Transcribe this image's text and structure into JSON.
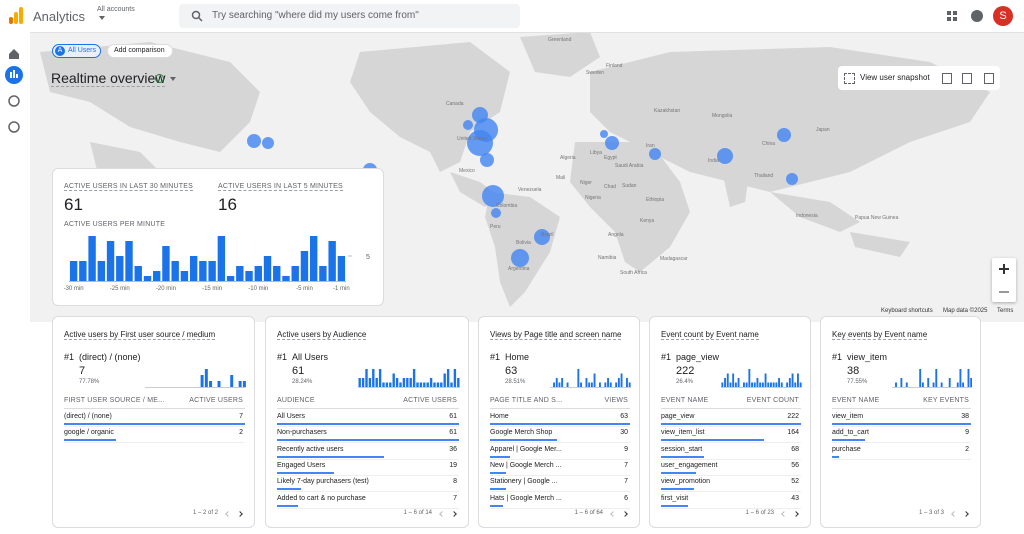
{
  "header": {
    "app_name": "Analytics",
    "account": "All accounts",
    "search_placeholder": "Try searching \"where did my users come from\"",
    "avatar": "S"
  },
  "toolbar": {
    "segment_badge": "A",
    "segment": "All Users",
    "add_comparison": "Add comparison",
    "title": "Realtime overview",
    "snapshot": "View user snapshot"
  },
  "map": {
    "labels": [
      "Greenland",
      "Canada",
      "United States",
      "Mexico",
      "Venezuela",
      "Colombia",
      "Peru",
      "Brazil",
      "Bolivia",
      "Argentina",
      "Sweden",
      "Finland",
      "Kazakhstan",
      "Mongolia",
      "China",
      "India",
      "Iran",
      "Saudi Arabia",
      "Egypt",
      "Libya",
      "Algeria",
      "Mali",
      "Niger",
      "Chad",
      "Sudan",
      "Nigeria",
      "Ethiopia",
      "Kenya",
      "Angola",
      "Namibia",
      "South Africa",
      "Madagascar",
      "Thailand",
      "Indonesia",
      "Papua New Guinea",
      "Japan"
    ],
    "footer": [
      "Keyboard shortcuts",
      "Map data ©2025",
      "Terms"
    ]
  },
  "overview": {
    "last30_label": "ACTIVE USERS IN LAST 30 MINUTES",
    "last30_value": 61,
    "last5_label": "ACTIVE USERS IN LAST 5 MINUTES",
    "last5_value": 16
  },
  "chart_data": {
    "type": "bar",
    "title": "ACTIVE USERS PER MINUTE",
    "color": "#1a73e8",
    "categories": [
      "-30 min",
      null,
      null,
      null,
      null,
      "-25 min",
      null,
      null,
      null,
      null,
      "-20 min",
      null,
      null,
      null,
      null,
      "-15 min",
      null,
      null,
      null,
      null,
      "-10 min",
      null,
      null,
      null,
      null,
      "-5 min",
      null,
      null,
      null,
      "-1 min"
    ],
    "values": [
      4,
      4,
      9,
      4,
      8,
      5,
      8,
      3,
      1,
      2,
      7,
      4,
      2,
      5,
      4,
      4,
      9,
      1,
      3,
      2,
      3,
      5,
      3,
      1,
      3,
      6,
      9,
      3,
      8,
      5
    ],
    "ylim": [
      0,
      10
    ],
    "yticks": [
      5
    ]
  },
  "cards": [
    {
      "title": "Active users by First user source / medium",
      "top_rank": "#1",
      "top_name": "(direct) / (none)",
      "top_value": 7,
      "top_percent": "77.78%",
      "sparkline": [
        0,
        0,
        0,
        0,
        0,
        0,
        0,
        0,
        0,
        0,
        0,
        0,
        0,
        2,
        3,
        1,
        0,
        1,
        0,
        0,
        2,
        0,
        1,
        1
      ],
      "columns": [
        "FIRST USER SOURCE / ME...",
        "ACTIVE USERS"
      ],
      "rows": [
        {
          "label": "(direct) / (none)",
          "value": 7
        },
        {
          "label": "google / organic",
          "value": 2
        }
      ],
      "pagination": "1 – 2 of 2"
    },
    {
      "title": "Active users by Audience",
      "top_rank": "#1",
      "top_name": "All Users",
      "top_value": 61,
      "top_percent": "28.24%",
      "sparkline": [
        2,
        2,
        4,
        2,
        4,
        2,
        4,
        1,
        1,
        1,
        3,
        2,
        1,
        2,
        2,
        2,
        4,
        1,
        1,
        1,
        1,
        2,
        1,
        1,
        1,
        3,
        4,
        1,
        4,
        2
      ],
      "columns": [
        "AUDIENCE",
        "ACTIVE USERS"
      ],
      "rows": [
        {
          "label": "All Users",
          "value": 61
        },
        {
          "label": "Non-purchasers",
          "value": 61
        },
        {
          "label": "Recently active users",
          "value": 36
        },
        {
          "label": "Engaged Users",
          "value": 19
        },
        {
          "label": "Likely 7-day purchasers (test)",
          "value": 8
        },
        {
          "label": "Added to cart & no purchase",
          "value": 7
        }
      ],
      "pagination": "1 – 6 of 14"
    },
    {
      "title": "Views by Page title and screen name",
      "top_rank": "#1",
      "top_name": "Home",
      "top_value": 63,
      "top_percent": "28.51%",
      "sparkline": [
        0,
        1,
        2,
        1,
        2,
        0,
        1,
        0,
        0,
        0,
        4,
        1,
        0,
        2,
        1,
        1,
        3,
        0,
        1,
        0,
        1,
        2,
        1,
        0,
        1,
        2,
        3,
        0,
        2,
        1
      ],
      "columns": [
        "PAGE TITLE AND S...",
        "VIEWS"
      ],
      "rows": [
        {
          "label": "Home",
          "value": 63
        },
        {
          "label": "Google Merch Shop",
          "value": 30
        },
        {
          "label": "Apparel | Google Mer...",
          "value": 9
        },
        {
          "label": "New | Google Merch ...",
          "value": 7
        },
        {
          "label": "Stationery | Google ...",
          "value": 7
        },
        {
          "label": "Hats | Google Merch ...",
          "value": 6
        }
      ],
      "pagination": "1 – 6 of 64"
    },
    {
      "title": "Event count by Event name",
      "top_rank": "#1",
      "top_name": "page_view",
      "top_value": 222,
      "top_percent": "26.4%",
      "sparkline": [
        1,
        2,
        3,
        1,
        3,
        1,
        2,
        0,
        1,
        1,
        4,
        1,
        1,
        2,
        1,
        1,
        3,
        1,
        1,
        1,
        1,
        2,
        1,
        0,
        1,
        2,
        3,
        1,
        3,
        1
      ],
      "columns": [
        "EVENT NAME",
        "EVENT COUNT"
      ],
      "rows": [
        {
          "label": "page_view",
          "value": 222
        },
        {
          "label": "view_item_list",
          "value": 164
        },
        {
          "label": "session_start",
          "value": 68
        },
        {
          "label": "user_engagement",
          "value": 56
        },
        {
          "label": "view_promotion",
          "value": 52
        },
        {
          "label": "first_visit",
          "value": 43
        }
      ],
      "pagination": "1 – 6 of 23"
    },
    {
      "title": "Key events by Event name",
      "top_rank": "#1",
      "top_name": "view_item",
      "top_value": 38,
      "top_percent": "77.55%",
      "sparkline": [
        0,
        1,
        0,
        2,
        0,
        1,
        0,
        0,
        0,
        0,
        4,
        1,
        0,
        2,
        0,
        1,
        4,
        0,
        1,
        0,
        0,
        2,
        0,
        0,
        1,
        4,
        1,
        0,
        4,
        2
      ],
      "columns": [
        "EVENT NAME",
        "KEY EVENTS"
      ],
      "rows": [
        {
          "label": "view_item",
          "value": 38
        },
        {
          "label": "add_to_cart",
          "value": 9
        },
        {
          "label": "purchase",
          "value": 2
        }
      ],
      "pagination": "1 – 3 of 3"
    }
  ]
}
